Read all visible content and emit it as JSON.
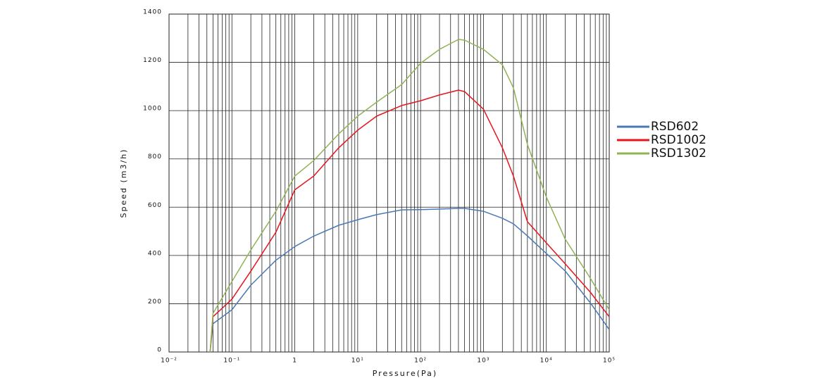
{
  "chart_data": {
    "type": "line",
    "xlabel": "Pressure(Pa)",
    "ylabel": "Speed (m3/h)",
    "log_x": true,
    "grid": true,
    "legend": "right",
    "xlim": [
      0.01,
      100000
    ],
    "xticks": [
      {
        "value": 0.01,
        "label": "10⁻²"
      },
      {
        "value": 0.1,
        "label": "10⁻¹"
      },
      1,
      {
        "value": 10,
        "label": "10¹"
      },
      {
        "value": 100,
        "label": "10²"
      },
      {
        "value": 1000,
        "label": "10³"
      },
      {
        "value": 10000,
        "label": "10⁴"
      },
      {
        "value": 100000,
        "label": "10⁵"
      }
    ],
    "ylim": [
      0,
      1400
    ],
    "yticks": [
      0,
      200,
      400,
      600,
      800,
      1000,
      1200,
      1400
    ],
    "x": [
      0.045,
      0.05,
      0.1,
      0.2,
      0.5,
      1,
      2,
      5,
      10,
      20,
      50,
      100,
      200,
      400,
      500,
      1000,
      2000,
      3000,
      5000,
      10000,
      20000,
      50000,
      100000
    ],
    "series": [
      {
        "name": "RSD602",
        "color": "#4a7ab5",
        "values": [
          0,
          117,
          175,
          277,
          380,
          437,
          480,
          525,
          548,
          569,
          589,
          590,
          592,
          595,
          595,
          583,
          554,
          531,
          481,
          408,
          335,
          204,
          93
        ]
      },
      {
        "name": "RSD1002",
        "color": "#e8141c",
        "values": [
          0,
          146,
          219,
          335,
          496,
          672,
          729,
          846,
          919,
          977,
          1021,
          1041,
          1065,
          1085,
          1079,
          1006,
          846,
          729,
          540,
          452,
          365,
          248,
          146
        ]
      },
      {
        "name": "RSD1302",
        "color": "#8fb356",
        "values": [
          0,
          160,
          292,
          423,
          583,
          729,
          793,
          904,
          977,
          1035,
          1108,
          1196,
          1254,
          1295,
          1292,
          1254,
          1190,
          1094,
          860,
          642,
          467,
          306,
          175
        ]
      }
    ]
  }
}
